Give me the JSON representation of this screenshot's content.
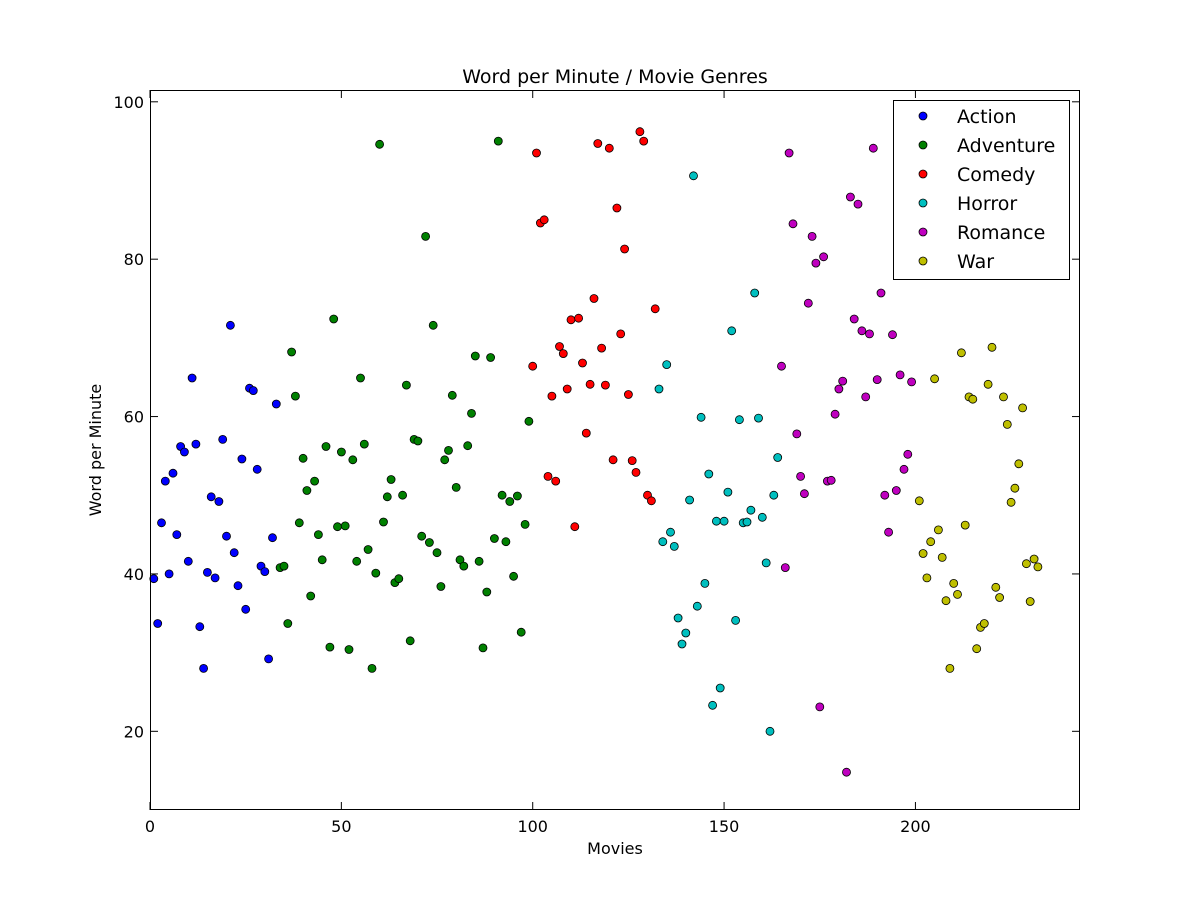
{
  "chart_data": {
    "type": "scatter",
    "title": "Word per Minute / Movie Genres",
    "xlabel": "Movies",
    "ylabel": "Word per Minute",
    "xlim": [
      0,
      243
    ],
    "ylim": [
      10,
      101.5
    ],
    "xticks": [
      0,
      50,
      100,
      150,
      200
    ],
    "yticks": [
      20,
      40,
      60,
      80,
      100
    ],
    "grid": false,
    "legend_position": "top-right",
    "series": [
      {
        "name": "Action",
        "color": "#0000ff",
        "points": [
          [
            1,
            39.4
          ],
          [
            2,
            33.7
          ],
          [
            3,
            46.5
          ],
          [
            4,
            51.8
          ],
          [
            5,
            40.0
          ],
          [
            6,
            52.8
          ],
          [
            7,
            45.0
          ],
          [
            8,
            56.2
          ],
          [
            9,
            55.5
          ],
          [
            10,
            41.6
          ],
          [
            11,
            64.9
          ],
          [
            12,
            56.5
          ],
          [
            13,
            33.3
          ],
          [
            14,
            28.0
          ],
          [
            15,
            40.2
          ],
          [
            16,
            49.8
          ],
          [
            17,
            39.5
          ],
          [
            18,
            49.2
          ],
          [
            19,
            57.1
          ],
          [
            20,
            44.8
          ],
          [
            21,
            71.6
          ],
          [
            22,
            42.7
          ],
          [
            23,
            38.5
          ],
          [
            24,
            54.6
          ],
          [
            25,
            35.5
          ],
          [
            26,
            63.6
          ],
          [
            27,
            63.3
          ],
          [
            28,
            53.3
          ],
          [
            29,
            41.0
          ],
          [
            30,
            40.3
          ],
          [
            31,
            29.2
          ],
          [
            32,
            44.6
          ],
          [
            33,
            61.6
          ]
        ]
      },
      {
        "name": "Adventure",
        "color": "#008000",
        "points": [
          [
            34,
            40.8
          ],
          [
            35,
            41.0
          ],
          [
            36,
            33.7
          ],
          [
            37,
            68.2
          ],
          [
            38,
            62.6
          ],
          [
            39,
            46.5
          ],
          [
            40,
            54.7
          ],
          [
            41,
            50.6
          ],
          [
            42,
            37.2
          ],
          [
            43,
            51.8
          ],
          [
            44,
            45.0
          ],
          [
            45,
            41.8
          ],
          [
            46,
            56.2
          ],
          [
            47,
            30.7
          ],
          [
            48,
            72.4
          ],
          [
            49,
            46.0
          ],
          [
            50,
            55.5
          ],
          [
            51,
            46.1
          ],
          [
            52,
            30.4
          ],
          [
            53,
            54.5
          ],
          [
            54,
            41.6
          ],
          [
            55,
            64.9
          ],
          [
            56,
            56.5
          ],
          [
            57,
            43.1
          ],
          [
            58,
            28.0
          ],
          [
            59,
            40.1
          ],
          [
            60,
            94.6
          ],
          [
            61,
            46.6
          ],
          [
            62,
            49.8
          ],
          [
            63,
            52.0
          ],
          [
            64,
            38.9
          ],
          [
            65,
            39.4
          ],
          [
            66,
            50.0
          ],
          [
            67,
            64.0
          ],
          [
            68,
            31.5
          ],
          [
            69,
            57.1
          ],
          [
            70,
            56.9
          ],
          [
            71,
            44.8
          ],
          [
            72,
            82.9
          ],
          [
            73,
            44.0
          ],
          [
            74,
            71.6
          ],
          [
            75,
            42.7
          ],
          [
            76,
            38.4
          ],
          [
            77,
            54.5
          ],
          [
            78,
            55.7
          ],
          [
            79,
            62.7
          ],
          [
            80,
            51.0
          ],
          [
            81,
            41.8
          ],
          [
            82,
            41.0
          ],
          [
            83,
            56.3
          ],
          [
            84,
            60.4
          ],
          [
            85,
            67.7
          ],
          [
            86,
            41.6
          ],
          [
            87,
            30.6
          ],
          [
            88,
            37.7
          ],
          [
            89,
            67.5
          ],
          [
            90,
            44.5
          ],
          [
            91,
            95.0
          ],
          [
            92,
            50.0
          ],
          [
            93,
            44.1
          ],
          [
            94,
            49.2
          ],
          [
            95,
            39.7
          ],
          [
            96,
            49.9
          ],
          [
            97,
            32.6
          ],
          [
            98,
            46.3
          ],
          [
            99,
            59.4
          ]
        ]
      },
      {
        "name": "Comedy",
        "color": "#ff0000",
        "points": [
          [
            100,
            66.4
          ],
          [
            101,
            93.5
          ],
          [
            102,
            84.6
          ],
          [
            103,
            85.0
          ],
          [
            104,
            52.4
          ],
          [
            105,
            62.6
          ],
          [
            106,
            51.8
          ],
          [
            107,
            68.9
          ],
          [
            108,
            68.0
          ],
          [
            109,
            63.5
          ],
          [
            110,
            72.3
          ],
          [
            111,
            46.0
          ],
          [
            112,
            72.5
          ],
          [
            113,
            66.8
          ],
          [
            114,
            57.9
          ],
          [
            115,
            64.1
          ],
          [
            116,
            75.0
          ],
          [
            117,
            94.7
          ],
          [
            118,
            68.7
          ],
          [
            119,
            64.0
          ],
          [
            120,
            94.1
          ],
          [
            121,
            54.5
          ],
          [
            122,
            86.5
          ],
          [
            123,
            70.5
          ],
          [
            124,
            81.3
          ],
          [
            125,
            62.8
          ],
          [
            126,
            54.4
          ],
          [
            127,
            52.9
          ],
          [
            128,
            96.2
          ],
          [
            129,
            95.0
          ],
          [
            130,
            50.0
          ],
          [
            131,
            49.3
          ],
          [
            132,
            73.7
          ]
        ]
      },
      {
        "name": "Horror",
        "color": "#00bfbf",
        "points": [
          [
            133,
            63.5
          ],
          [
            134,
            44.1
          ],
          [
            135,
            66.6
          ],
          [
            136,
            45.3
          ],
          [
            137,
            43.5
          ],
          [
            138,
            34.4
          ],
          [
            139,
            31.1
          ],
          [
            140,
            32.5
          ],
          [
            141,
            49.4
          ],
          [
            142,
            90.6
          ],
          [
            143,
            35.9
          ],
          [
            144,
            59.9
          ],
          [
            145,
            38.8
          ],
          [
            146,
            52.7
          ],
          [
            147,
            23.3
          ],
          [
            148,
            46.7
          ],
          [
            149,
            25.5
          ],
          [
            150,
            46.7
          ],
          [
            151,
            50.4
          ],
          [
            152,
            70.9
          ],
          [
            153,
            34.1
          ],
          [
            154,
            59.6
          ],
          [
            155,
            46.5
          ],
          [
            156,
            46.6
          ],
          [
            157,
            48.1
          ],
          [
            158,
            75.7
          ],
          [
            159,
            59.8
          ],
          [
            160,
            47.2
          ],
          [
            161,
            41.4
          ],
          [
            162,
            20.0
          ],
          [
            163,
            50.0
          ],
          [
            164,
            54.8
          ]
        ]
      },
      {
        "name": "Romance",
        "color": "#bf00bf",
        "points": [
          [
            165,
            66.4
          ],
          [
            166,
            40.8
          ],
          [
            167,
            93.5
          ],
          [
            168,
            84.5
          ],
          [
            169,
            57.8
          ],
          [
            170,
            52.4
          ],
          [
            171,
            50.2
          ],
          [
            172,
            74.4
          ],
          [
            173,
            82.9
          ],
          [
            174,
            79.5
          ],
          [
            175,
            23.1
          ],
          [
            176,
            80.3
          ],
          [
            177,
            51.8
          ],
          [
            178,
            51.9
          ],
          [
            179,
            60.3
          ],
          [
            180,
            63.5
          ],
          [
            181,
            64.5
          ],
          [
            182,
            14.8
          ],
          [
            183,
            87.9
          ],
          [
            184,
            72.4
          ],
          [
            185,
            87.0
          ],
          [
            186,
            70.9
          ],
          [
            187,
            62.5
          ],
          [
            188,
            70.5
          ],
          [
            189,
            94.1
          ],
          [
            190,
            64.7
          ],
          [
            191,
            75.7
          ],
          [
            192,
            50.0
          ],
          [
            193,
            45.3
          ],
          [
            194,
            70.4
          ],
          [
            195,
            50.6
          ],
          [
            196,
            65.3
          ],
          [
            197,
            53.3
          ],
          [
            198,
            55.2
          ],
          [
            199,
            64.4
          ]
        ]
      },
      {
        "name": "War",
        "color": "#bfbf00",
        "points": [
          [
            201,
            49.3
          ],
          [
            202,
            42.6
          ],
          [
            203,
            39.5
          ],
          [
            204,
            44.1
          ],
          [
            205,
            64.8
          ],
          [
            206,
            45.6
          ],
          [
            207,
            42.1
          ],
          [
            208,
            36.6
          ],
          [
            209,
            28.0
          ],
          [
            210,
            38.8
          ],
          [
            211,
            37.4
          ],
          [
            212,
            68.1
          ],
          [
            213,
            46.2
          ],
          [
            214,
            62.5
          ],
          [
            215,
            62.2
          ],
          [
            216,
            30.5
          ],
          [
            217,
            33.2
          ],
          [
            218,
            33.7
          ],
          [
            219,
            64.1
          ],
          [
            220,
            68.8
          ],
          [
            221,
            38.3
          ],
          [
            222,
            37.0
          ],
          [
            223,
            62.5
          ],
          [
            224,
            59.0
          ],
          [
            225,
            49.1
          ],
          [
            226,
            50.9
          ],
          [
            227,
            54.0
          ],
          [
            228,
            61.1
          ],
          [
            229,
            41.3
          ],
          [
            230,
            36.5
          ],
          [
            231,
            41.9
          ],
          [
            232,
            40.9
          ]
        ]
      }
    ]
  }
}
